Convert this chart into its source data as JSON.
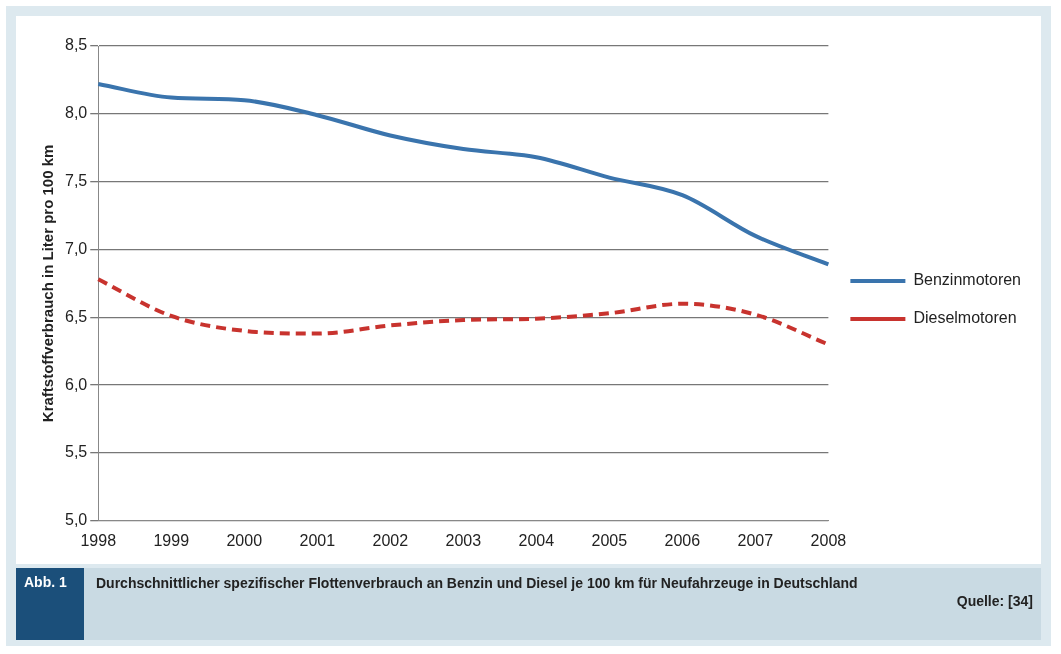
{
  "chart_data": {
    "type": "line",
    "ylabel": "Kraftstoffverbrauch in Liter pro 100 km",
    "categories": [
      "1998",
      "1999",
      "2000",
      "2001",
      "2002",
      "2003",
      "2004",
      "2005",
      "2006",
      "2007",
      "2008"
    ],
    "series": [
      {
        "name": "Benzinmotoren",
        "color": "#3a74ad",
        "line_style": "solid",
        "values": [
          8.22,
          8.12,
          8.1,
          7.99,
          7.84,
          7.74,
          7.68,
          7.53,
          7.4,
          7.1,
          6.89
        ]
      },
      {
        "name": "Dieselmotoren",
        "color": "#c8332e",
        "line_style": "dashed",
        "values": [
          6.78,
          6.51,
          6.4,
          6.38,
          6.44,
          6.48,
          6.49,
          6.53,
          6.6,
          6.52,
          6.3
        ]
      }
    ],
    "ylim": [
      5,
      8.5
    ],
    "yticks": [
      {
        "value": 5,
        "label": "5,0"
      },
      {
        "value": 5.5,
        "label": "5,5"
      },
      {
        "value": 6,
        "label": "6,0"
      },
      {
        "value": 6.5,
        "label": "6,5"
      },
      {
        "value": 7,
        "label": "7,0"
      },
      {
        "value": 7.5,
        "label": "7,5"
      },
      {
        "value": 8,
        "label": "8,0"
      },
      {
        "value": 8.5,
        "label": "8,5"
      }
    ],
    "grid": "y",
    "legend": "right",
    "marker": "none",
    "annotations": [
      "Abb. 1",
      "Durchschnittlicher spezifischer Flottenverbrauch an Benzin und Diesel je 100 km für Neufahrzeuge in Deutschland",
      "Quelle: [34]"
    ]
  }
}
